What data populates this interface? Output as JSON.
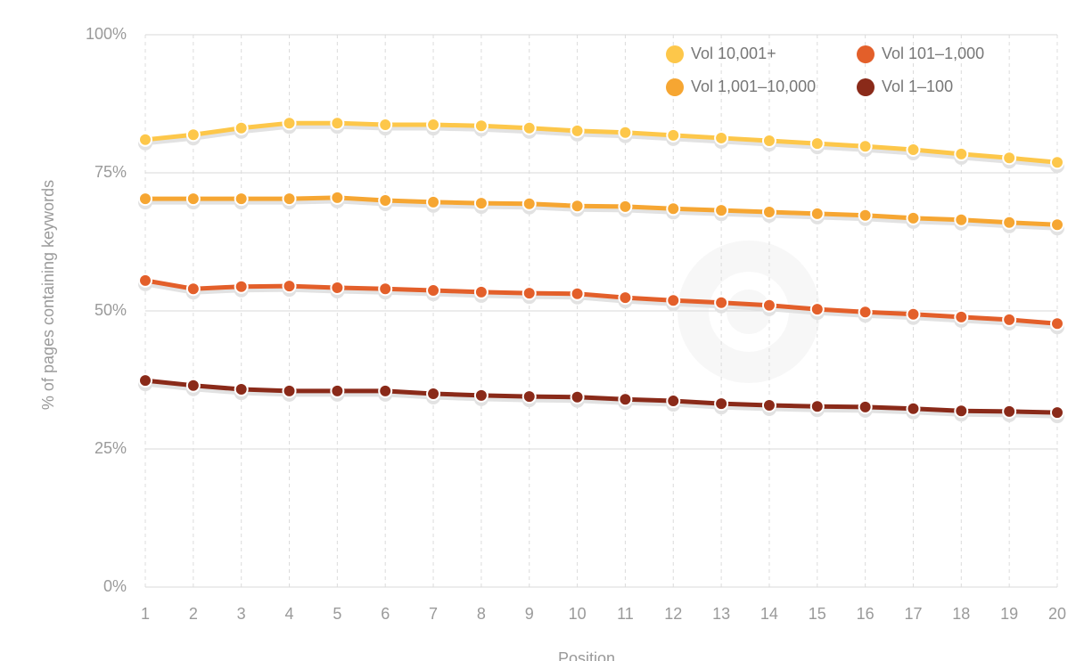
{
  "chart_data": {
    "type": "line",
    "xlabel": "Position",
    "ylabel": "% of pages containing keywords",
    "x": [
      1,
      2,
      3,
      4,
      5,
      6,
      7,
      8,
      9,
      10,
      11,
      12,
      13,
      14,
      15,
      16,
      17,
      18,
      19,
      20
    ],
    "xlim": [
      1,
      20
    ],
    "xticks": [
      1,
      2,
      3,
      4,
      5,
      6,
      7,
      8,
      9,
      10,
      11,
      12,
      13,
      14,
      15,
      16,
      17,
      18,
      19,
      20
    ],
    "ylim": [
      0,
      100
    ],
    "yticks": [
      {
        "value": 0,
        "label": "0%"
      },
      {
        "value": 25,
        "label": "25%"
      },
      {
        "value": 50,
        "label": "50%"
      },
      {
        "value": 75,
        "label": "75%"
      },
      {
        "value": 100,
        "label": "100%"
      }
    ],
    "grid": true,
    "legend": "top-right",
    "series": [
      {
        "name": "Vol 10,001+",
        "color": "#fdc74a",
        "values": [
          81.0,
          81.9,
          83.1,
          84.0,
          84.0,
          83.7,
          83.7,
          83.5,
          83.1,
          82.6,
          82.3,
          81.8,
          81.3,
          80.8,
          80.3,
          79.8,
          79.2,
          78.4,
          77.7,
          76.9
        ]
      },
      {
        "name": "Vol 1,001–10,000",
        "color": "#f6a632",
        "values": [
          70.3,
          70.3,
          70.3,
          70.3,
          70.5,
          70.0,
          69.7,
          69.5,
          69.4,
          69.0,
          68.9,
          68.5,
          68.2,
          67.9,
          67.6,
          67.3,
          66.8,
          66.5,
          66.0,
          65.6
        ]
      },
      {
        "name": "Vol 101–1,000",
        "color": "#e35f2a",
        "values": [
          55.5,
          54.0,
          54.4,
          54.5,
          54.2,
          54.0,
          53.7,
          53.4,
          53.2,
          53.1,
          52.4,
          51.9,
          51.5,
          51.0,
          50.3,
          49.8,
          49.4,
          48.9,
          48.4,
          47.7
        ]
      },
      {
        "name": "Vol 1–100",
        "color": "#8a2a19",
        "values": [
          37.4,
          36.5,
          35.8,
          35.5,
          35.5,
          35.5,
          35.0,
          34.7,
          34.5,
          34.4,
          34.0,
          33.7,
          33.2,
          32.9,
          32.7,
          32.6,
          32.3,
          31.9,
          31.8,
          31.6
        ]
      }
    ]
  }
}
